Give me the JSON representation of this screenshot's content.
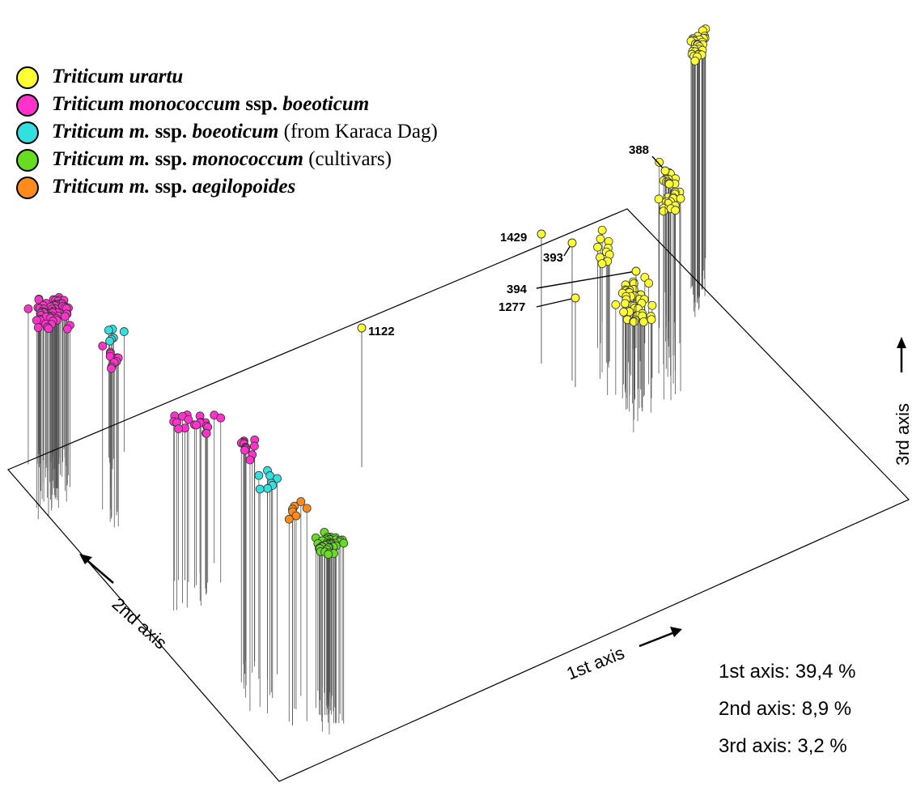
{
  "chart_data": {
    "type": "scatter",
    "subtype": "3d-stem-scatter",
    "axes": {
      "x": {
        "label": "1st axis",
        "variance": "39,4 %"
      },
      "y": {
        "label": "2nd axis",
        "variance": "8,9 %"
      },
      "z": {
        "label": "3rd axis",
        "variance": "3,2 %"
      }
    },
    "legend": {
      "placement": "top-left",
      "entries": [
        {
          "key": "urartu",
          "parts": [
            {
              "t": "Triticum urartu",
              "s": "bi"
            }
          ],
          "color": "#ffff33"
        },
        {
          "key": "boeoticum",
          "parts": [
            {
              "t": "Triticum monococcum",
              "s": "bi"
            },
            {
              "t": " ssp. ",
              "s": "b"
            },
            {
              "t": "boeoticum",
              "s": "bi"
            }
          ],
          "color": "#ff33cc"
        },
        {
          "key": "karaca",
          "parts": [
            {
              "t": "Triticum m.",
              "s": "bi"
            },
            {
              "t": " ssp.  ",
              "s": "b"
            },
            {
              "t": "boeoticum",
              "s": "bi"
            },
            {
              "t": " (from Karaca Dag)",
              "s": "n"
            }
          ],
          "color": "#33e0e0"
        },
        {
          "key": "monococcum",
          "parts": [
            {
              "t": "Triticum m.",
              "s": "bi"
            },
            {
              "t": " ssp.  ",
              "s": "b"
            },
            {
              "t": "monococcum",
              "s": "bi"
            },
            {
              "t": " (cultivars)",
              "s": "n"
            }
          ],
          "color": "#66dd22"
        },
        {
          "key": "aegilopoides",
          "parts": [
            {
              "t": "Triticum m.",
              "s": "bi"
            },
            {
              "t": " ssp. ",
              "s": "b"
            },
            {
              "t": "aegilopoides",
              "s": "bi"
            }
          ],
          "color": "#ff8c1a"
        }
      ]
    },
    "labeled_points": [
      {
        "label": "1122",
        "group": "urartu"
      },
      {
        "label": "1429",
        "group": "urartu"
      },
      {
        "label": "393",
        "group": "urartu"
      },
      {
        "label": "394",
        "group": "urartu"
      },
      {
        "label": "1277",
        "group": "urartu"
      },
      {
        "label": "388",
        "group": "urartu"
      }
    ],
    "stats": [
      {
        "label": "1st axis:",
        "value": "39,4 %"
      },
      {
        "label": "2nd axis:",
        "value": "8,9 %"
      },
      {
        "label": "3rd axis:",
        "value": "3,2 %"
      }
    ]
  }
}
